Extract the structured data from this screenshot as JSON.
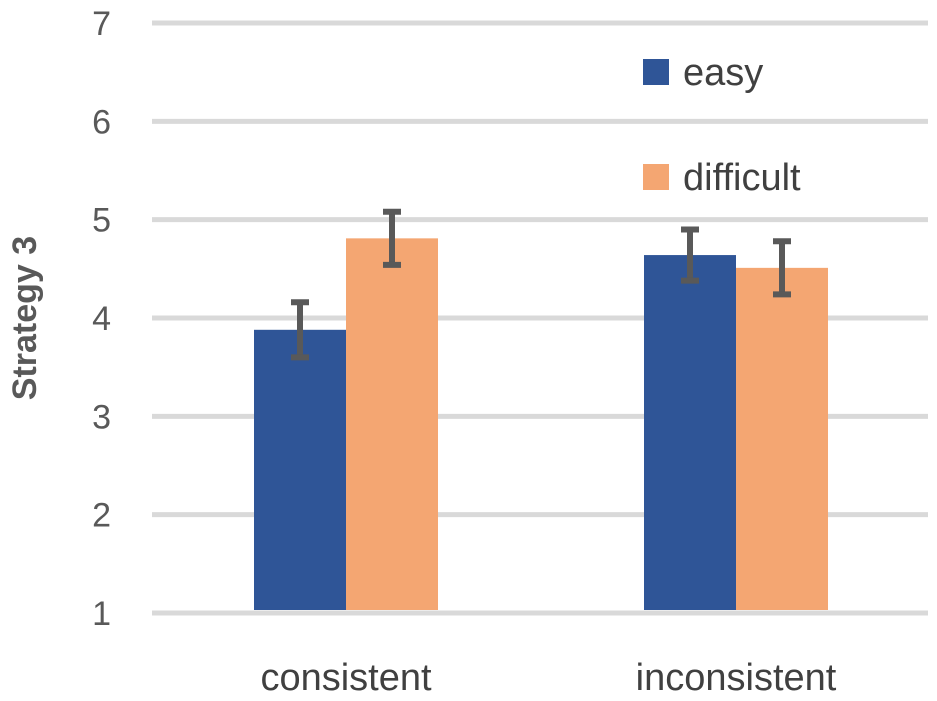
{
  "chart_data": {
    "type": "bar",
    "title": "",
    "xlabel": "",
    "ylabel": "Strategy 3",
    "ylim": [
      1,
      7
    ],
    "yticks": [
      1,
      2,
      3,
      4,
      5,
      6,
      7
    ],
    "grid": true,
    "legend_position": "top-right",
    "categories": [
      "consistent",
      "inconsistent"
    ],
    "series": [
      {
        "name": "easy",
        "color": "#2F5597",
        "values": [
          3.88,
          4.64
        ],
        "errors": [
          0.28,
          0.26
        ]
      },
      {
        "name": "difficult",
        "color": "#F4A672",
        "values": [
          4.81,
          4.51
        ],
        "errors": [
          0.27,
          0.27
        ]
      }
    ]
  }
}
